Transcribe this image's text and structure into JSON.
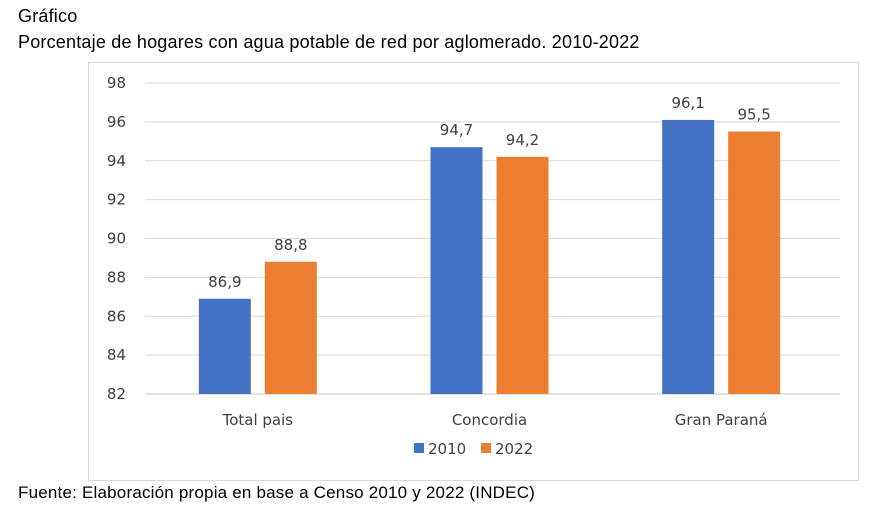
{
  "header": {
    "label": "Gráfico",
    "title": "Porcentaje de hogares con agua potable de red por aglomerado. 2010-2022"
  },
  "footer": {
    "source": "Fuente: Elaboración propia en base a Censo 2010 y 2022 (INDEC)"
  },
  "chart_data": {
    "type": "bar",
    "title": "Porcentaje de hogares con agua potable de red por aglomerado. 2010-2022",
    "categories": [
      "Total pais",
      "Concordia",
      "Gran Paraná"
    ],
    "series": [
      {
        "name": "2010",
        "color": "#4472C4",
        "values": [
          86.9,
          94.7,
          96.1
        ],
        "labels": [
          "86,9",
          "94,7",
          "96,1"
        ]
      },
      {
        "name": "2022",
        "color": "#ED7D31",
        "values": [
          88.8,
          94.2,
          95.5
        ],
        "labels": [
          "88,8",
          "94,2",
          "95,5"
        ]
      }
    ],
    "ylim": [
      82,
      98
    ],
    "yticks": [
      "82",
      "84",
      "86",
      "88",
      "90",
      "92",
      "94",
      "96",
      "98"
    ],
    "grid": true,
    "legend": "bottom",
    "xlabel": "",
    "ylabel": ""
  }
}
